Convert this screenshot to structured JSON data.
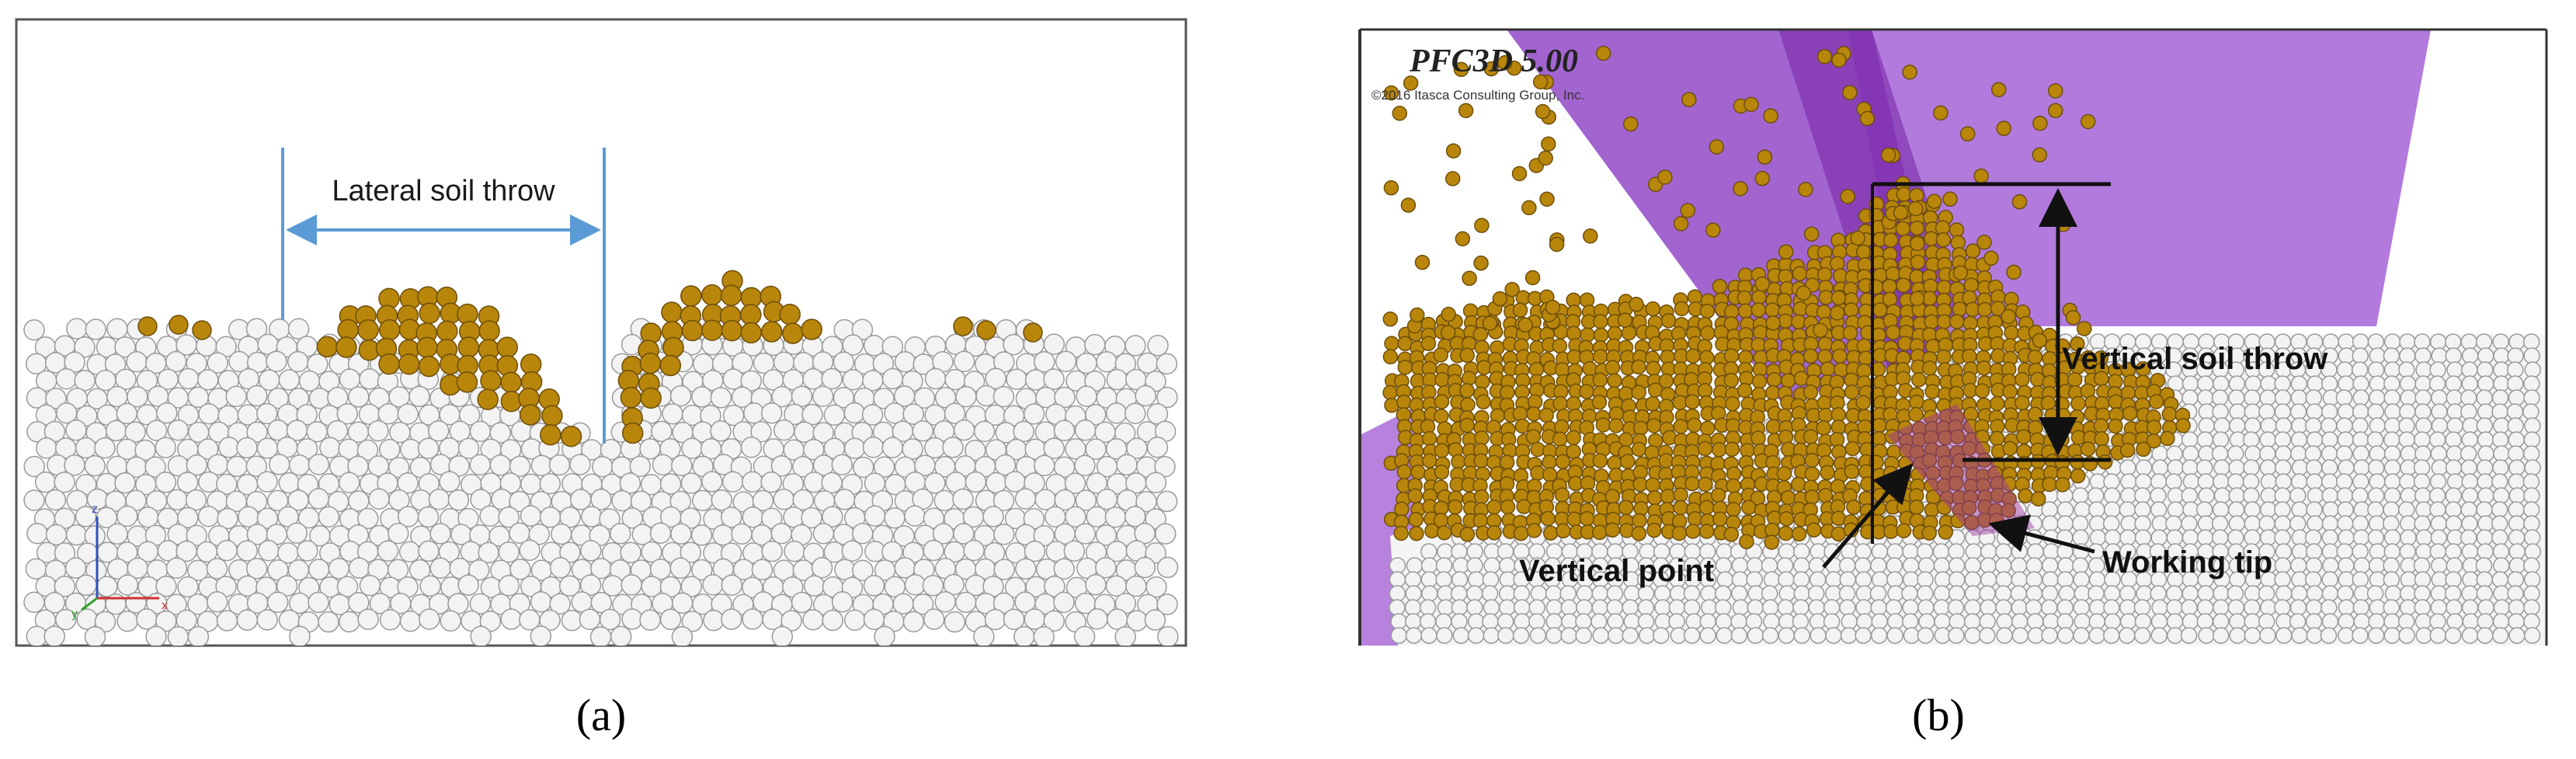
{
  "panels": [
    {
      "caption": "(a)",
      "annotations": {
        "lateral": "Lateral soil throw"
      },
      "axes": {
        "z": "z",
        "x": "x",
        "y": "y"
      }
    },
    {
      "caption": "(b)",
      "software": "PFC3D 5.00",
      "copyright": "©2016 Itasca Consulting Group, Inc.",
      "annotations": {
        "vertical_throw": "Vertical soil throw",
        "vertical_point": "Vertical point",
        "working_tip": "Working tip"
      }
    }
  ]
}
